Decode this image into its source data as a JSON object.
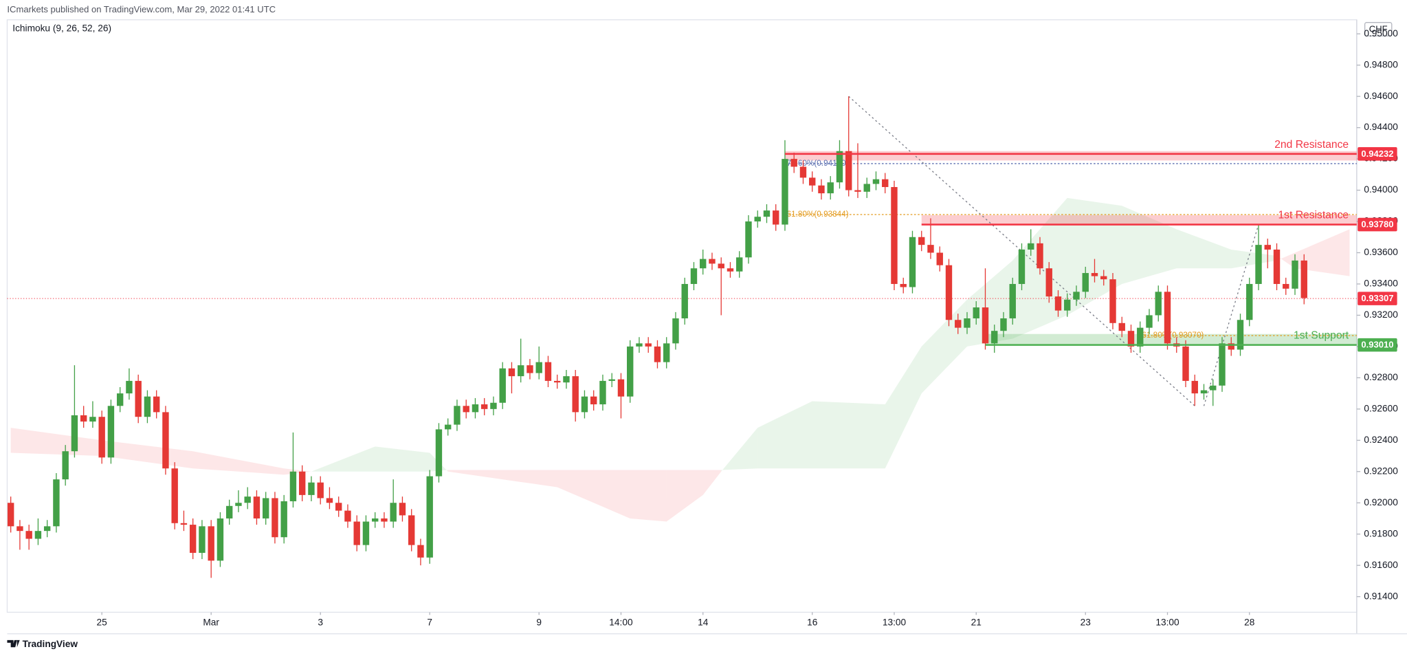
{
  "header": "ICmarkets published on TradingView.com, Mar 29, 2022 01:41 UTC",
  "indicator": "Ichimoku (9, 26, 52, 26)",
  "currency": "CHF",
  "footer": "TradingView",
  "chart_data": {
    "type": "candlestick",
    "up_color": "#43a047",
    "down_color": "#e53935",
    "ylim": [
      0.913,
      0.9509
    ],
    "yticks": [
      {
        "value": 0.914,
        "label": "0.91400"
      },
      {
        "value": 0.916,
        "label": "0.91600"
      },
      {
        "value": 0.918,
        "label": "0.91800"
      },
      {
        "value": 0.92,
        "label": "0.92000"
      },
      {
        "value": 0.922,
        "label": "0.92200"
      },
      {
        "value": 0.924,
        "label": "0.92400"
      },
      {
        "value": 0.926,
        "label": "0.92600"
      },
      {
        "value": 0.928,
        "label": "0.92800"
      },
      {
        "value": 0.93,
        "label": "0.93000"
      },
      {
        "value": 0.932,
        "label": "0.93200"
      },
      {
        "value": 0.934,
        "label": "0.93400"
      },
      {
        "value": 0.936,
        "label": "0.93600"
      },
      {
        "value": 0.938,
        "label": "0.93800"
      },
      {
        "value": 0.94,
        "label": "0.94000"
      },
      {
        "value": 0.942,
        "label": "0.94200"
      },
      {
        "value": 0.944,
        "label": "0.94400"
      },
      {
        "value": 0.946,
        "label": "0.94600"
      },
      {
        "value": 0.948,
        "label": "0.94800"
      },
      {
        "value": 0.95,
        "label": "0.95000"
      }
    ],
    "grid": false,
    "categories": [
      null,
      null,
      null,
      null,
      null,
      null,
      null,
      null,
      null,
      null,
      "25",
      null,
      null,
      null,
      null,
      null,
      null,
      null,
      null,
      null,
      null,
      null,
      "Mar",
      null,
      null,
      null,
      null,
      null,
      null,
      null,
      null,
      null,
      null,
      null,
      "3",
      null,
      null,
      null,
      null,
      null,
      null,
      null,
      null,
      null,
      null,
      null,
      "7",
      null,
      null,
      null,
      null,
      null,
      null,
      null,
      null,
      null,
      null,
      null,
      "9",
      null,
      null,
      null,
      null,
      null,
      null,
      null,
      null,
      "14:00",
      null,
      null,
      null,
      null,
      null,
      null,
      null,
      null,
      "14",
      null,
      null,
      null,
      null,
      null,
      null,
      null,
      null,
      null,
      null,
      null,
      "16",
      null,
      null,
      null,
      null,
      null,
      null,
      null,
      null,
      "13:00",
      null,
      null,
      null,
      null,
      null,
      null,
      null,
      null,
      "21",
      null,
      null,
      null,
      null,
      null,
      null,
      null,
      null,
      null,
      null,
      null,
      "23",
      null,
      null,
      null,
      null,
      null,
      null,
      null,
      null,
      "13:00",
      null,
      null,
      null,
      null,
      null,
      null,
      null,
      null,
      "28",
      null,
      null,
      null,
      null,
      null,
      null
    ],
    "ohlc": [
      [
        0.92,
        0.9204,
        0.9181,
        0.9185
      ],
      [
        0.9185,
        0.9189,
        0.917,
        0.9182
      ],
      [
        0.9182,
        0.9186,
        0.917,
        0.9177
      ],
      [
        0.9177,
        0.919,
        0.9173,
        0.9182
      ],
      [
        0.9182,
        0.9189,
        0.9178,
        0.9185
      ],
      [
        0.9185,
        0.9219,
        0.9181,
        0.9215
      ],
      [
        0.9215,
        0.9237,
        0.9211,
        0.9233
      ],
      [
        0.9233,
        0.9288,
        0.9229,
        0.9256
      ],
      [
        0.9256,
        0.9262,
        0.9248,
        0.9252
      ],
      [
        0.9252,
        0.9265,
        0.9248,
        0.9255
      ],
      [
        0.9255,
        0.9259,
        0.9225,
        0.9229
      ],
      [
        0.9229,
        0.9266,
        0.9225,
        0.9262
      ],
      [
        0.9262,
        0.9274,
        0.9258,
        0.927
      ],
      [
        0.927,
        0.9286,
        0.9266,
        0.9278
      ],
      [
        0.9278,
        0.9282,
        0.9251,
        0.9255
      ],
      [
        0.9255,
        0.9272,
        0.9251,
        0.9268
      ],
      [
        0.9268,
        0.9272,
        0.9254,
        0.9258
      ],
      [
        0.9258,
        0.9262,
        0.9218,
        0.9222
      ],
      [
        0.9222,
        0.9226,
        0.9183,
        0.9187
      ],
      [
        0.9187,
        0.9195,
        0.9182,
        0.9186
      ],
      [
        0.9186,
        0.919,
        0.9164,
        0.9168
      ],
      [
        0.9168,
        0.9189,
        0.9164,
        0.9185
      ],
      [
        0.9185,
        0.9189,
        0.9152,
        0.9163
      ],
      [
        0.9163,
        0.9194,
        0.9159,
        0.919
      ],
      [
        0.919,
        0.9202,
        0.9186,
        0.9198
      ],
      [
        0.9198,
        0.9208,
        0.9194,
        0.92
      ],
      [
        0.92,
        0.921,
        0.9196,
        0.9204
      ],
      [
        0.9204,
        0.9208,
        0.9186,
        0.919
      ],
      [
        0.919,
        0.9207,
        0.9186,
        0.9203
      ],
      [
        0.9203,
        0.9207,
        0.9174,
        0.9178
      ],
      [
        0.9178,
        0.9205,
        0.9174,
        0.9201
      ],
      [
        0.9201,
        0.9245,
        0.9197,
        0.922
      ],
      [
        0.922,
        0.9224,
        0.9201,
        0.9205
      ],
      [
        0.9205,
        0.9217,
        0.9201,
        0.9213
      ],
      [
        0.9213,
        0.9217,
        0.9199,
        0.9203
      ],
      [
        0.9203,
        0.921,
        0.9196,
        0.92
      ],
      [
        0.92,
        0.9204,
        0.9191,
        0.9195
      ],
      [
        0.9195,
        0.9199,
        0.9184,
        0.9188
      ],
      [
        0.9188,
        0.9192,
        0.9169,
        0.9173
      ],
      [
        0.9173,
        0.9192,
        0.9169,
        0.9188
      ],
      [
        0.9188,
        0.9194,
        0.9184,
        0.919
      ],
      [
        0.919,
        0.9194,
        0.9184,
        0.9188
      ],
      [
        0.9188,
        0.9215,
        0.9184,
        0.92
      ],
      [
        0.92,
        0.9204,
        0.9188,
        0.9192
      ],
      [
        0.9192,
        0.9196,
        0.9169,
        0.9173
      ],
      [
        0.9173,
        0.9177,
        0.916,
        0.9165
      ],
      [
        0.9165,
        0.9221,
        0.9161,
        0.9217
      ],
      [
        0.9217,
        0.9251,
        0.9213,
        0.9247
      ],
      [
        0.9247,
        0.9254,
        0.9243,
        0.925
      ],
      [
        0.925,
        0.9266,
        0.9246,
        0.9262
      ],
      [
        0.9262,
        0.9266,
        0.9254,
        0.9258
      ],
      [
        0.9258,
        0.9267,
        0.9254,
        0.9263
      ],
      [
        0.9263,
        0.9267,
        0.9256,
        0.926
      ],
      [
        0.926,
        0.9268,
        0.9256,
        0.9264
      ],
      [
        0.9264,
        0.929,
        0.926,
        0.9286
      ],
      [
        0.9286,
        0.929,
        0.927,
        0.9281
      ],
      [
        0.9281,
        0.9305,
        0.9277,
        0.9288
      ],
      [
        0.9288,
        0.9292,
        0.9279,
        0.9283
      ],
      [
        0.9283,
        0.93,
        0.9279,
        0.929
      ],
      [
        0.929,
        0.9294,
        0.9274,
        0.9278
      ],
      [
        0.9278,
        0.9282,
        0.9273,
        0.9277
      ],
      [
        0.9277,
        0.9285,
        0.9273,
        0.9281
      ],
      [
        0.9281,
        0.9285,
        0.9252,
        0.9258
      ],
      [
        0.9258,
        0.9272,
        0.9254,
        0.9268
      ],
      [
        0.9268,
        0.9272,
        0.9259,
        0.9263
      ],
      [
        0.9263,
        0.9282,
        0.9259,
        0.9278
      ],
      [
        0.9278,
        0.9283,
        0.9274,
        0.9279
      ],
      [
        0.9279,
        0.9283,
        0.9254,
        0.9268
      ],
      [
        0.9268,
        0.9304,
        0.9264,
        0.93
      ],
      [
        0.93,
        0.9306,
        0.9296,
        0.9302
      ],
      [
        0.9302,
        0.9306,
        0.9296,
        0.93
      ],
      [
        0.93,
        0.9304,
        0.9286,
        0.929
      ],
      [
        0.929,
        0.9306,
        0.9286,
        0.9302
      ],
      [
        0.9302,
        0.9322,
        0.9298,
        0.9318
      ],
      [
        0.9318,
        0.9344,
        0.9314,
        0.934
      ],
      [
        0.934,
        0.9354,
        0.9336,
        0.935
      ],
      [
        0.935,
        0.9362,
        0.9346,
        0.9356
      ],
      [
        0.9356,
        0.936,
        0.9349,
        0.9353
      ],
      [
        0.9353,
        0.9357,
        0.932,
        0.935
      ],
      [
        0.935,
        0.9354,
        0.9344,
        0.9348
      ],
      [
        0.9348,
        0.9361,
        0.9344,
        0.9357
      ],
      [
        0.9357,
        0.9384,
        0.9353,
        0.938
      ],
      [
        0.938,
        0.9387,
        0.9376,
        0.9383
      ],
      [
        0.9383,
        0.9391,
        0.9379,
        0.9387
      ],
      [
        0.9387,
        0.9391,
        0.9374,
        0.9378
      ],
      [
        0.9378,
        0.9432,
        0.9374,
        0.942
      ],
      [
        0.942,
        0.9424,
        0.9411,
        0.9415
      ],
      [
        0.9415,
        0.9419,
        0.9404,
        0.9408
      ],
      [
        0.9408,
        0.9412,
        0.9399,
        0.9403
      ],
      [
        0.9403,
        0.9407,
        0.9394,
        0.9398
      ],
      [
        0.9398,
        0.9409,
        0.9394,
        0.9405
      ],
      [
        0.9405,
        0.9432,
        0.9401,
        0.9425
      ],
      [
        0.9425,
        0.946,
        0.9396,
        0.94
      ],
      [
        0.94,
        0.943,
        0.9395,
        0.9399
      ],
      [
        0.9399,
        0.9408,
        0.9395,
        0.9404
      ],
      [
        0.9404,
        0.9412,
        0.94,
        0.9407
      ],
      [
        0.9407,
        0.9411,
        0.9398,
        0.9402
      ],
      [
        0.9402,
        0.9406,
        0.9336,
        0.934
      ],
      [
        0.934,
        0.9344,
        0.9334,
        0.9338
      ],
      [
        0.9338,
        0.9374,
        0.9334,
        0.937
      ],
      [
        0.937,
        0.9374,
        0.9361,
        0.9365
      ],
      [
        0.9365,
        0.9382,
        0.9356,
        0.936
      ],
      [
        0.936,
        0.9364,
        0.9348,
        0.9352
      ],
      [
        0.9352,
        0.9356,
        0.9313,
        0.9317
      ],
      [
        0.9317,
        0.9321,
        0.9308,
        0.9312
      ],
      [
        0.9312,
        0.9322,
        0.9308,
        0.9318
      ],
      [
        0.9318,
        0.9329,
        0.9314,
        0.9325
      ],
      [
        0.9325,
        0.935,
        0.9298,
        0.9302
      ],
      [
        0.9302,
        0.9314,
        0.9296,
        0.931
      ],
      [
        0.931,
        0.9322,
        0.9306,
        0.9318
      ],
      [
        0.9318,
        0.9344,
        0.9314,
        0.934
      ],
      [
        0.934,
        0.9366,
        0.9336,
        0.9362
      ],
      [
        0.9362,
        0.9375,
        0.9358,
        0.9366
      ],
      [
        0.9366,
        0.937,
        0.9346,
        0.935
      ],
      [
        0.935,
        0.9354,
        0.9328,
        0.9332
      ],
      [
        0.9332,
        0.9336,
        0.9319,
        0.9323
      ],
      [
        0.9323,
        0.9334,
        0.9319,
        0.933
      ],
      [
        0.933,
        0.9339,
        0.9326,
        0.9335
      ],
      [
        0.9335,
        0.9351,
        0.9331,
        0.9347
      ],
      [
        0.9347,
        0.9356,
        0.9341,
        0.9345
      ],
      [
        0.9345,
        0.9349,
        0.9339,
        0.9343
      ],
      [
        0.9343,
        0.9347,
        0.9311,
        0.9315
      ],
      [
        0.9315,
        0.9319,
        0.9306,
        0.931
      ],
      [
        0.931,
        0.9314,
        0.9296,
        0.93
      ],
      [
        0.93,
        0.9316,
        0.9296,
        0.9312
      ],
      [
        0.9312,
        0.9324,
        0.9308,
        0.932
      ],
      [
        0.932,
        0.9339,
        0.9316,
        0.9335
      ],
      [
        0.9335,
        0.9339,
        0.9298,
        0.9302
      ],
      [
        0.9302,
        0.9306,
        0.9296,
        0.93
      ],
      [
        0.93,
        0.9304,
        0.9274,
        0.9278
      ],
      [
        0.9278,
        0.9282,
        0.9262,
        0.927
      ],
      [
        0.927,
        0.9276,
        0.9266,
        0.9272
      ],
      [
        0.9272,
        0.9279,
        0.9262,
        0.9275
      ],
      [
        0.9275,
        0.9306,
        0.9271,
        0.9302
      ],
      [
        0.9302,
        0.9306,
        0.9294,
        0.9298
      ],
      [
        0.9298,
        0.9321,
        0.9294,
        0.9317
      ],
      [
        0.9317,
        0.9344,
        0.9313,
        0.934
      ],
      [
        0.934,
        0.9378,
        0.9336,
        0.9365
      ],
      [
        0.9365,
        0.9369,
        0.935,
        0.9362
      ],
      [
        0.9362,
        0.9366,
        0.9336,
        0.934
      ],
      [
        0.934,
        0.9344,
        0.9333,
        0.9337
      ],
      [
        0.9337,
        0.9359,
        0.9333,
        0.9355
      ],
      [
        0.9355,
        0.9359,
        0.9327,
        0.9331
      ]
    ],
    "cloud": {
      "x": [
        0,
        10,
        20,
        30,
        33,
        40,
        46,
        48,
        60,
        68,
        72,
        76,
        78,
        82,
        88,
        96,
        100,
        105,
        110,
        116,
        122,
        128,
        134,
        139,
        141,
        147
      ],
      "span_a": [
        0.9232,
        0.923,
        0.9222,
        0.9218,
        0.922,
        0.9236,
        0.9232,
        0.922,
        0.921,
        0.919,
        0.9188,
        0.9205,
        0.922,
        0.9248,
        0.9265,
        0.9263,
        0.93,
        0.933,
        0.9355,
        0.9395,
        0.939,
        0.9375,
        0.9362,
        0.9358,
        0.935,
        0.9345
      ],
      "span_b": [
        0.9248,
        0.924,
        0.9233,
        0.9222,
        0.922,
        0.922,
        0.922,
        0.9221,
        0.9221,
        0.9221,
        0.9221,
        0.9221,
        0.9221,
        0.9222,
        0.9222,
        0.9222,
        0.927,
        0.93,
        0.9305,
        0.932,
        0.934,
        0.935,
        0.935,
        0.9355,
        0.936,
        0.9375
      ],
      "up_color": "rgba(76,175,80,0.12)",
      "down_color": "rgba(242,54,69,0.12)"
    },
    "levels": [
      {
        "name": "2nd Resistance",
        "price": 0.94232,
        "zone": [
          0.9419,
          0.9425
        ],
        "from": 85,
        "color": "#f23645",
        "zone_color": "rgba(242,54,69,0.25)"
      },
      {
        "name": "1st Resistance",
        "price": {
          "value": 0.9378,
          "label": "0.93780"
        },
        "zone": [
          0.9378,
          0.9384
        ],
        "from": 100,
        "color": "#f23645",
        "zone_color": "rgba(242,54,69,0.25)"
      },
      {
        "name": "1st Support",
        "price": {
          "value": 0.9301,
          "label": "0.93010"
        },
        "zone": [
          0.9301,
          0.9308
        ],
        "from": 107,
        "color": "#4caf50",
        "zone_color": "rgba(76,175,80,0.25)"
      }
    ],
    "last_price": 0.93307,
    "last_price_color": "#f23645",
    "fib_levels": [
      {
        "label": "78.60%(0.94170)",
        "price": 0.9417,
        "from": 85,
        "color": "#5b6fb0"
      },
      {
        "label": "61.80%(0.93844)",
        "price": 0.93844,
        "from": 85,
        "color": "#e39a1c"
      },
      {
        "label": "61.80%(0.93070)",
        "price": 0.9307,
        "from": 124,
        "color": "#e39a1c"
      }
    ],
    "trend_lines": [
      {
        "x": [
          92,
          130
        ],
        "y": [
          0.946,
          0.9262
        ]
      },
      {
        "x": [
          131,
          137
        ],
        "y": [
          0.9262,
          0.9378
        ]
      }
    ]
  }
}
